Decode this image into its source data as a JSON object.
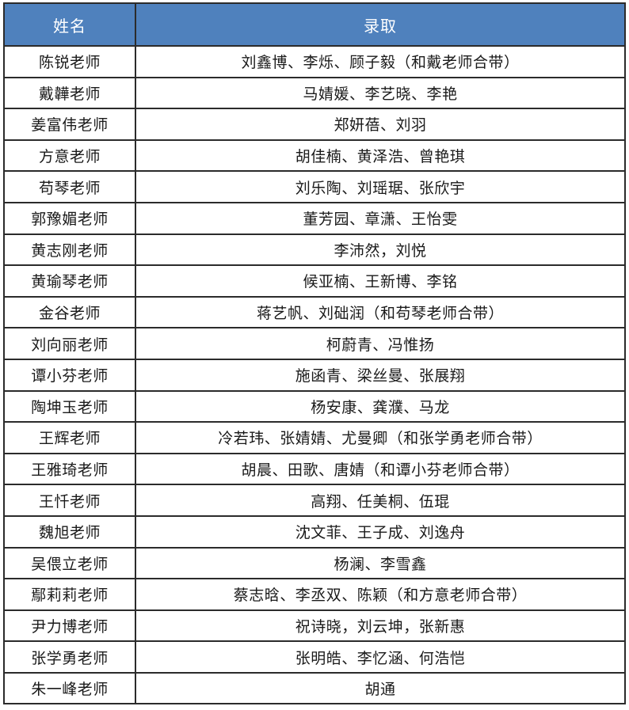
{
  "table": {
    "headers": {
      "name": "姓名",
      "admission": "录取"
    },
    "rows": [
      {
        "teacher": "陈锐老师",
        "admitted": "刘鑫博、李烁、顾子毅（和戴老师合带）"
      },
      {
        "teacher": "戴韡老师",
        "admitted": "马婧媛、李艺晓、李艳"
      },
      {
        "teacher": "姜富伟老师",
        "admitted": "郑妍蓓、刘羽"
      },
      {
        "teacher": "方意老师",
        "admitted": "胡佳楠、黄泽浩、曾艳琪"
      },
      {
        "teacher": "苟琴老师",
        "admitted": "刘乐陶、刘瑶琚、张欣宇"
      },
      {
        "teacher": "郭豫媚老师",
        "admitted": "董芳园、章潇、王怡雯"
      },
      {
        "teacher": "黄志刚老师",
        "admitted": "李沛然，刘悦"
      },
      {
        "teacher": "黄瑜琴老师",
        "admitted": "候亚楠、王新博、李铭"
      },
      {
        "teacher": "金谷老师",
        "admitted": "蒋艺帆、刘础润（和苟琴老师合带）"
      },
      {
        "teacher": "刘向丽老师",
        "admitted": "柯蔚青、冯惟扬"
      },
      {
        "teacher": "谭小芬老师",
        "admitted": "施函青、梁丝曼、张展翔"
      },
      {
        "teacher": "陶坤玉老师",
        "admitted": "杨安康、龚濮、马龙"
      },
      {
        "teacher": "王辉老师",
        "admitted": "冷若玮、张婧婧、尤曼卿（和张学勇老师合带）"
      },
      {
        "teacher": "王雅琦老师",
        "admitted": "胡晨、田歌、唐婧（和谭小芬老师合带）"
      },
      {
        "teacher": "王忏老师",
        "admitted": "高翔、任美桐、伍琨"
      },
      {
        "teacher": "魏旭老师",
        "admitted": "沈文菲、王子成、刘逸舟"
      },
      {
        "teacher": "吴偎立老师",
        "admitted": "杨澜、李雪鑫"
      },
      {
        "teacher": "鄢莉莉老师",
        "admitted": "蔡志晗、李丞双、陈颖（和方意老师合带）"
      },
      {
        "teacher": "尹力博老师",
        "admitted": "祝诗晓，刘云坤，张新惠"
      },
      {
        "teacher": "张学勇老师",
        "admitted": "张明皓、李忆涵、何浩恺"
      },
      {
        "teacher": "朱一峰老师",
        "admitted": "胡通"
      }
    ]
  },
  "colors": {
    "header_background": "#4f81bd",
    "header_text": "#ffffff",
    "border": "#2b2b2b",
    "body_text": "#1a1a1a"
  }
}
